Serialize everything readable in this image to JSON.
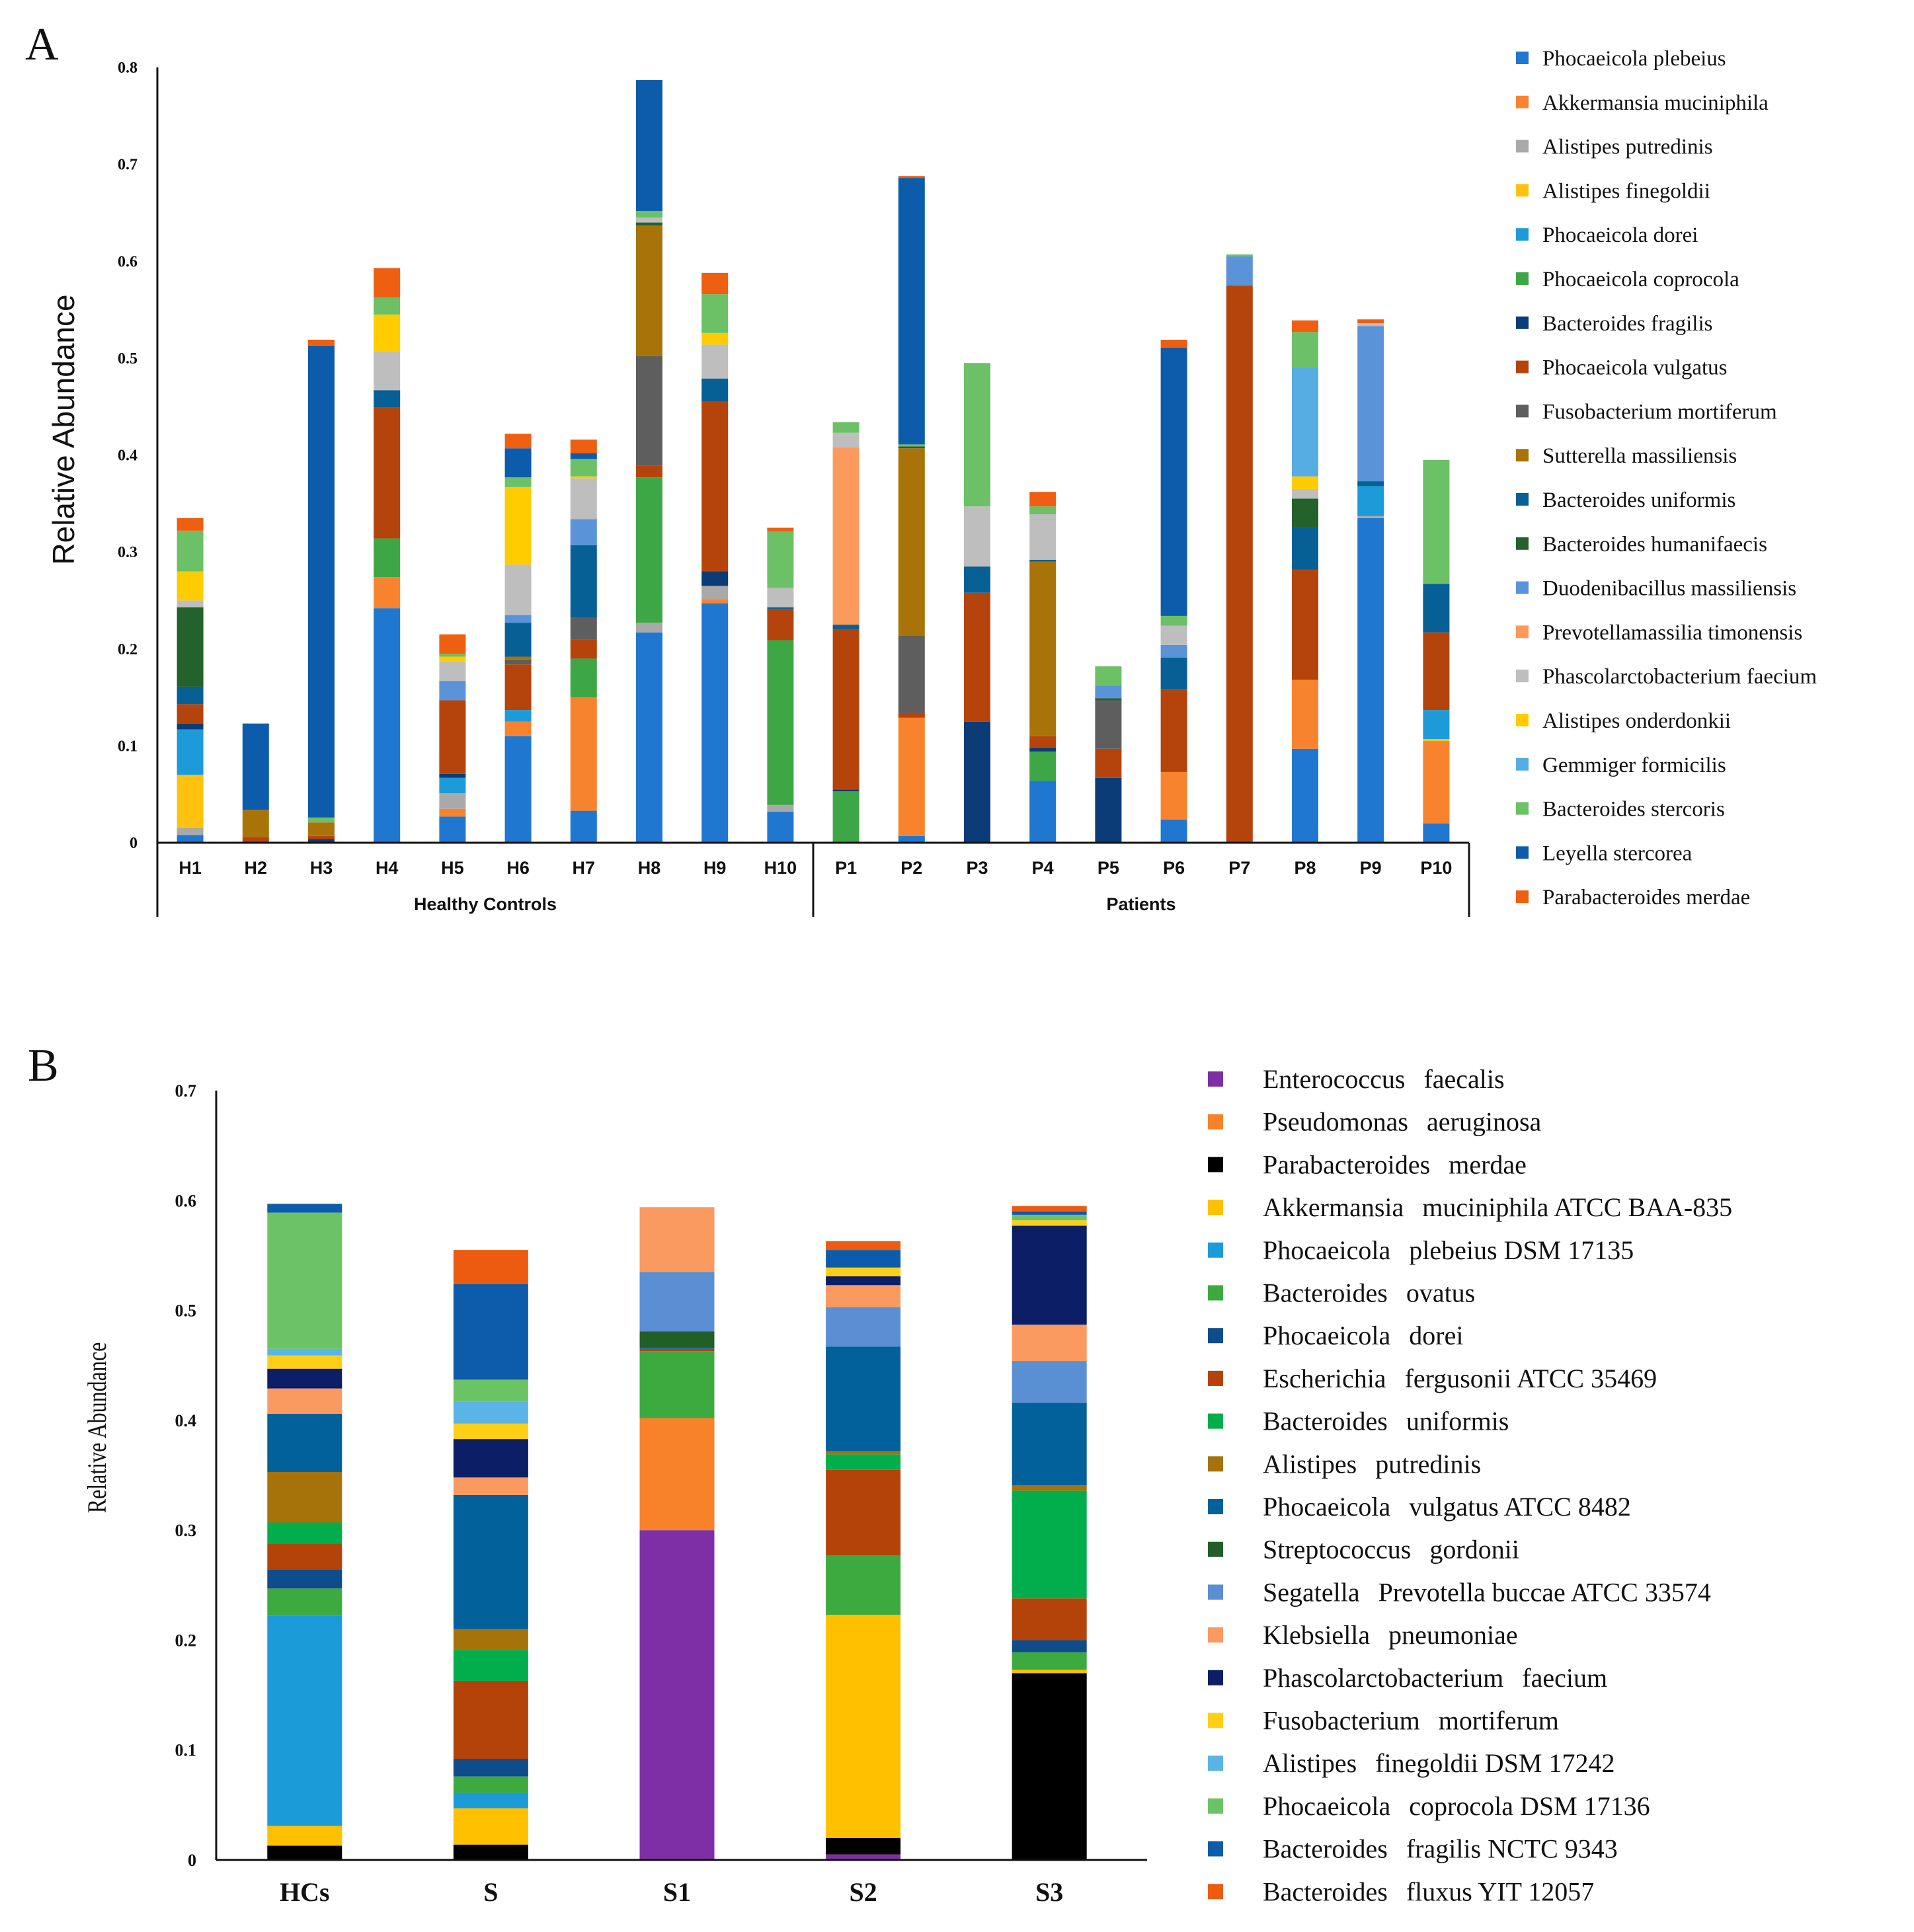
{
  "panel_labels": {
    "a": "A",
    "b": "B"
  },
  "chart_data": [
    {
      "type": "bar",
      "stacked": true,
      "panel": "A",
      "ylabel": "Relative Abundance",
      "ylim": [
        0,
        0.8
      ],
      "yticks": [
        "0",
        "0.1",
        "0.2",
        "0.3",
        "0.4",
        "0.5",
        "0.6",
        "0.7",
        "0.8"
      ],
      "ytick_values": [
        0,
        0.1,
        0.2,
        0.3,
        0.4,
        0.5,
        0.6,
        0.7,
        0.8
      ],
      "categories": [
        "H1",
        "H2",
        "H3",
        "H4",
        "H5",
        "H6",
        "H7",
        "H8",
        "H9",
        "H10",
        "P1",
        "P2",
        "P3",
        "P4",
        "P5",
        "P6",
        "P7",
        "P8",
        "P9",
        "P10"
      ],
      "groups": [
        {
          "label": "Healthy Controls",
          "start": 0,
          "end": 9
        },
        {
          "label": "Patients",
          "start": 10,
          "end": 19
        }
      ],
      "legend_position": "right",
      "series": [
        {
          "name": "Phocaeicola plebeius",
          "color": "#1F77D0",
          "values": [
            0.008,
            0,
            0,
            0.242,
            0.027,
            0.11,
            0.033,
            0.217,
            0.247,
            0.032,
            0,
            0.007,
            0,
            0.064,
            0,
            0.024,
            0,
            0.097,
            0.335,
            0.02
          ]
        },
        {
          "name": "Akkermansia muciniphila",
          "color": "#F8832E",
          "values": [
            0,
            0,
            0,
            0.032,
            0.008,
            0.015,
            0.117,
            0,
            0.004,
            0,
            0,
            0.122,
            0,
            0,
            0,
            0.049,
            0,
            0.071,
            0,
            0.085
          ]
        },
        {
          "name": "Alistipes putredinis",
          "color": "#A9A9A9",
          "values": [
            0.007,
            0,
            0,
            0,
            0.016,
            0,
            0,
            0.01,
            0.014,
            0.007,
            0,
            0,
            0,
            0,
            0,
            0,
            0,
            0,
            0.002,
            0
          ]
        },
        {
          "name": "Alistipes finegoldii",
          "color": "#FFC20E",
          "values": [
            0.055,
            0,
            0,
            0,
            0,
            0,
            0,
            0,
            0,
            0,
            0,
            0,
            0,
            0,
            0,
            0,
            0,
            0,
            0,
            0.002
          ]
        },
        {
          "name": "Phocaeicola dorei",
          "color": "#1D9BD9",
          "values": [
            0.047,
            0,
            0,
            0,
            0.016,
            0.012,
            0,
            0,
            0,
            0,
            0,
            0,
            0,
            0,
            0,
            0,
            0,
            0,
            0.031,
            0.03
          ]
        },
        {
          "name": "Phocaeicola coprocola",
          "color": "#3EA745",
          "values": [
            0,
            0,
            0,
            0.04,
            0,
            0,
            0.04,
            0.15,
            0,
            0.17,
            0.053,
            0,
            0,
            0.03,
            0,
            0,
            0,
            0,
            0,
            0
          ]
        },
        {
          "name": "Bacteroides fragilis",
          "color": "#0B3C78",
          "values": [
            0.006,
            0,
            0.004,
            0,
            0.004,
            0,
            0,
            0,
            0.015,
            0,
            0.002,
            0,
            0.125,
            0.004,
            0.067,
            0,
            0,
            0,
            0,
            0
          ]
        },
        {
          "name": "Phocaeicola vulgatus",
          "color": "#B5440C",
          "values": [
            0.02,
            0.006,
            0.003,
            0.135,
            0.076,
            0.047,
            0.02,
            0.012,
            0.175,
            0.032,
            0.165,
            0.005,
            0.133,
            0.012,
            0.03,
            0.085,
            0.575,
            0.114,
            0,
            0.08
          ]
        },
        {
          "name": "Fusobacterium mortiferum",
          "color": "#5E5E5E",
          "values": [
            0,
            0,
            0,
            0,
            0,
            0.005,
            0.022,
            0.113,
            0,
            0,
            0,
            0.08,
            0,
            0,
            0.05,
            0,
            0,
            0,
            0,
            0
          ]
        },
        {
          "name": "Sutterella massiliensis",
          "color": "#A8740A",
          "values": [
            0,
            0.028,
            0.014,
            0,
            0,
            0.003,
            0,
            0.135,
            0,
            0,
            0,
            0.193,
            0,
            0.18,
            0,
            0,
            0,
            0,
            0,
            0
          ]
        },
        {
          "name": "Bacteroides uniformis",
          "color": "#066096",
          "values": [
            0.018,
            0,
            0,
            0.018,
            0,
            0.035,
            0.075,
            0,
            0.024,
            0.002,
            0.005,
            0,
            0.027,
            0.002,
            0,
            0.033,
            0,
            0.043,
            0.005,
            0.05
          ]
        },
        {
          "name": "Bacteroides humanifaecis",
          "color": "#23622A",
          "values": [
            0.082,
            0,
            0,
            0,
            0,
            0,
            0,
            0.003,
            0,
            0,
            0,
            0.002,
            0,
            0,
            0.002,
            0,
            0,
            0.03,
            0,
            0
          ]
        },
        {
          "name": "Duodenibacillus massiliensis",
          "color": "#5A93D8",
          "values": [
            0,
            0,
            0,
            0,
            0.02,
            0.008,
            0.027,
            0,
            0,
            0,
            0,
            0,
            0,
            0,
            0.013,
            0.013,
            0.03,
            0,
            0.16,
            0
          ]
        },
        {
          "name": "Prevotellamassilia timonensis",
          "color": "#FB9A5C",
          "values": [
            0,
            0,
            0,
            0,
            0,
            0,
            0,
            0,
            0,
            0,
            0.183,
            0,
            0,
            0,
            0,
            0,
            0,
            0,
            0,
            0
          ]
        },
        {
          "name": "Phascolarctobacterium faecium",
          "color": "#BEBEBE",
          "values": [
            0.007,
            0,
            0,
            0.04,
            0.02,
            0.052,
            0.042,
            0.005,
            0.035,
            0.02,
            0.015,
            0,
            0.062,
            0.047,
            0,
            0.02,
            0,
            0.01,
            0.003,
            0
          ]
        },
        {
          "name": "Alistipes onderdonkii",
          "color": "#FFCC00",
          "values": [
            0.03,
            0,
            0,
            0.038,
            0.005,
            0.08,
            0.002,
            0,
            0.012,
            0,
            0,
            0,
            0,
            0,
            0,
            0,
            0,
            0.013,
            0,
            0
          ]
        },
        {
          "name": "Gemmiger formicilis",
          "color": "#55ADE3",
          "values": [
            0,
            0,
            0,
            0,
            0,
            0,
            0,
            0,
            0,
            0,
            0,
            0,
            0,
            0,
            0,
            0,
            0,
            0.112,
            0,
            0
          ]
        },
        {
          "name": "Bacteroides stercoris",
          "color": "#6CC065",
          "values": [
            0.042,
            0,
            0.005,
            0.018,
            0.003,
            0.01,
            0.018,
            0.007,
            0.04,
            0.058,
            0.011,
            0.002,
            0.148,
            0.008,
            0.02,
            0.01,
            0.002,
            0.037,
            0,
            0.128
          ]
        },
        {
          "name": "Leyella stercorea",
          "color": "#0D5CAB",
          "values": [
            0,
            0.089,
            0.487,
            0,
            0,
            0.03,
            0.006,
            0.135,
            0,
            0,
            0,
            0.275,
            0,
            0,
            0,
            0.277,
            0,
            0,
            0,
            0
          ]
        },
        {
          "name": "Parabacteroides merdae",
          "color": "#EE5F11",
          "values": [
            0.013,
            0,
            0.006,
            0.03,
            0.02,
            0.015,
            0.014,
            0,
            0.022,
            0.004,
            0,
            0.002,
            0,
            0.015,
            0,
            0.008,
            0,
            0.012,
            0.004,
            0
          ]
        }
      ]
    },
    {
      "type": "bar",
      "stacked": true,
      "panel": "B",
      "ylabel": "Relative Abundance",
      "ylim": [
        0,
        0.7
      ],
      "yticks": [
        "0",
        "0.1",
        "0.2",
        "0.3",
        "0.4",
        "0.5",
        "0.6",
        "0.7"
      ],
      "ytick_values": [
        0,
        0.1,
        0.2,
        0.3,
        0.4,
        0.5,
        0.6,
        0.7
      ],
      "categories": [
        "HCs",
        "S",
        "S1",
        "S2",
        "S3"
      ],
      "legend_position": "right",
      "series": [
        {
          "name": "Enterococcus faecalis",
          "legend": [
            "Enterococcus",
            "faecalis"
          ],
          "color": "#7F2FA5",
          "values": [
            0,
            0,
            0.3,
            0.005,
            0
          ]
        },
        {
          "name": "Pseudomonas aeruginosa",
          "legend": [
            "Pseudomonas",
            "aeruginosa"
          ],
          "color": "#F8822A",
          "values": [
            0,
            0,
            0.102,
            0,
            0
          ]
        },
        {
          "name": "Parabacteroides merdae",
          "legend": [
            "Parabacteroides",
            "merdae"
          ],
          "color": "#000000",
          "values": [
            0.013,
            0.014,
            0,
            0.015,
            0.17
          ]
        },
        {
          "name": "Akkermansia muciniphila ATCC BAA-835",
          "legend": [
            "Akkermansia",
            "muciniphila ATCC BAA-835"
          ],
          "color": "#FFC000",
          "values": [
            0.018,
            0.033,
            0,
            0.203,
            0.003
          ]
        },
        {
          "name": "Phocaeicola plebeius DSM 17135",
          "legend": [
            "Phocaeicola",
            "plebeius DSM 17135"
          ],
          "color": "#1C9BD9",
          "values": [
            0.191,
            0.014,
            0,
            0,
            0
          ]
        },
        {
          "name": "Bacteroides ovatus",
          "legend": [
            "Bacteroides",
            "ovatus"
          ],
          "color": "#3DAA3F",
          "values": [
            0.025,
            0.015,
            0.061,
            0.054,
            0.016
          ]
        },
        {
          "name": "Phocaeicola dorei",
          "legend": [
            "Phocaeicola",
            "dorei"
          ],
          "color": "#0E4C8C",
          "values": [
            0.017,
            0.016,
            0,
            0,
            0.011
          ]
        },
        {
          "name": "Escherichia fergusonii ATCC 35469",
          "legend": [
            "Escherichia",
            "fergusonii ATCC 35469"
          ],
          "color": "#B4430A",
          "values": [
            0.024,
            0.071,
            0.002,
            0.078,
            0.038
          ]
        },
        {
          "name": "Bacteroides uniformis",
          "legend": [
            "Bacteroides",
            "uniformis"
          ],
          "color": "#02AE4C",
          "values": [
            0.019,
            0.028,
            0,
            0.014,
            0.098
          ]
        },
        {
          "name": "Alistipes putredinis",
          "legend": [
            "Alistipes",
            "putredinis"
          ],
          "color": "#A6720A",
          "values": [
            0.046,
            0.019,
            0,
            0.003,
            0.005
          ]
        },
        {
          "name": "Phocaeicola vulgatus ATCC 8482",
          "legend": [
            "Phocaeicola",
            "vulgatus ATCC 8482"
          ],
          "color": "#02619A",
          "values": [
            0.053,
            0.122,
            0.001,
            0.095,
            0.075
          ]
        },
        {
          "name": "Streptococcus gordonii",
          "legend": [
            "Streptococcus",
            "gordonii"
          ],
          "color": "#215F26",
          "values": [
            0,
            0,
            0.015,
            0,
            0
          ]
        },
        {
          "name": "Segatella Prevotella buccae ATCC 33574",
          "legend": [
            "Segatella",
            "Prevotella buccae ATCC 33574"
          ],
          "color": "#5A8FD3",
          "values": [
            0,
            0,
            0.054,
            0.036,
            0.038
          ]
        },
        {
          "name": "Klebsiella pneumoniae",
          "legend": [
            "Klebsiella",
            "pneumoniae"
          ],
          "color": "#FB9A60",
          "values": [
            0.023,
            0.016,
            0.059,
            0.02,
            0.033
          ]
        },
        {
          "name": "Phascolarctobacterium faecium",
          "legend": [
            "Phascolarctobacterium",
            "faecium"
          ],
          "color": "#0B1E66",
          "values": [
            0.018,
            0.035,
            0,
            0.008,
            0.09
          ]
        },
        {
          "name": "Fusobacterium mortiferum",
          "legend": [
            "Fusobacterium",
            "mortiferum"
          ],
          "color": "#FFCF17",
          "values": [
            0.012,
            0.014,
            0,
            0.008,
            0.005
          ]
        },
        {
          "name": "Alistipes finegoldii DSM 17242",
          "legend": [
            "Alistipes",
            "finegoldii DSM 17242"
          ],
          "color": "#5AB4E6",
          "values": [
            0.006,
            0.02,
            0,
            0,
            0
          ]
        },
        {
          "name": "Phocaeicola coprocola DSM 17136",
          "legend": [
            "Phocaeicola",
            "coprocola DSM 17136"
          ],
          "color": "#6CC366",
          "values": [
            0.124,
            0.02,
            0,
            0,
            0.005
          ]
        },
        {
          "name": "Bacteroides fragilis NCTC 9343",
          "legend": [
            "Bacteroides",
            "fragilis NCTC 9343"
          ],
          "color": "#0C5CAB",
          "values": [
            0.008,
            0.087,
            0,
            0.016,
            0.003
          ]
        },
        {
          "name": "Bacteroides fluxus YIT 12057",
          "legend": [
            "Bacteroides",
            "fluxus YIT 12057"
          ],
          "color": "#EC5B10",
          "values": [
            0,
            0.031,
            0,
            0.008,
            0.005
          ]
        }
      ]
    }
  ]
}
